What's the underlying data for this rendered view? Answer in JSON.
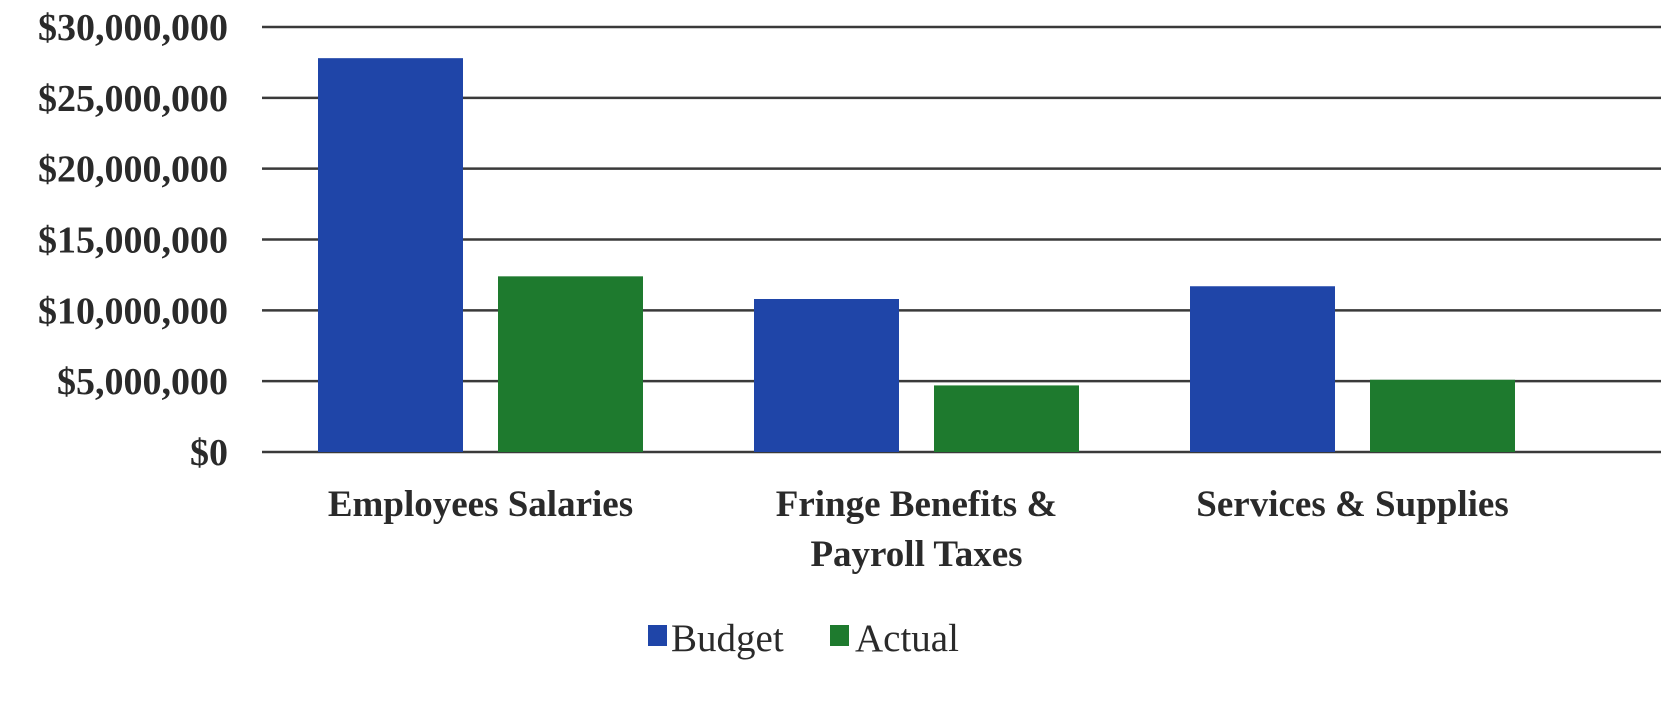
{
  "chart_data": {
    "type": "bar",
    "title": "",
    "xlabel": "",
    "ylabel": "",
    "categories": [
      "Employees Salaries",
      "Fringe Benefits & Payroll Taxes",
      "Services & Supplies"
    ],
    "category_label_lines": [
      [
        "Employees Salaries"
      ],
      [
        "Fringe Benefits &",
        "Payroll Taxes"
      ],
      [
        "Services & Supplies"
      ]
    ],
    "series": [
      {
        "name": "Budget",
        "color": "#1f45a8",
        "values": [
          27800000,
          10800000,
          11700000
        ]
      },
      {
        "name": "Actual",
        "color": "#1e7a2e",
        "values": [
          12400000,
          4700000,
          5100000
        ]
      }
    ],
    "ylim": [
      0,
      30000000
    ],
    "yticks": [
      0,
      5000000,
      10000000,
      15000000,
      20000000,
      25000000,
      30000000
    ],
    "ytick_labels": [
      "$0",
      "$5,000,000",
      "$10,000,000",
      "$15,000,000",
      "$20,000,000",
      "$25,000,000",
      "$30,000,000"
    ],
    "grid": true,
    "legend_position": "bottom-center"
  }
}
